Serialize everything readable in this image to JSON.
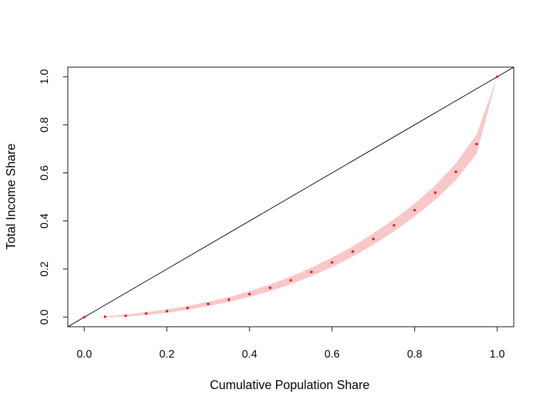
{
  "chart_data": {
    "type": "line",
    "title": "",
    "xlabel": "Cumulative Population Share",
    "ylabel": "Total Income Share",
    "xlim": [
      -0.04,
      1.04
    ],
    "ylim": [
      -0.04,
      1.04
    ],
    "x_ticks": [
      "0.0",
      "0.2",
      "0.4",
      "0.6",
      "0.8",
      "1.0"
    ],
    "y_ticks": [
      "0.0",
      "0.2",
      "0.4",
      "0.6",
      "0.8",
      "1.0"
    ],
    "grid": false,
    "legend": "none",
    "colors": {
      "points": "#ff0000",
      "band": "#f8c8c8",
      "equality_line": "#000000"
    },
    "equality_line": {
      "x": [
        0,
        1
      ],
      "y": [
        0,
        1
      ]
    },
    "series": [
      {
        "x": [
          0,
          0.05,
          0.1,
          0.15,
          0.2,
          0.25,
          0.3,
          0.35,
          0.4,
          0.45,
          0.5,
          0.55,
          0.6,
          0.65,
          0.7,
          0.75,
          0.8,
          0.85,
          0.9,
          0.95,
          1.0
        ],
        "y": [
          0,
          0.002,
          0.006,
          0.015,
          0.025,
          0.038,
          0.055,
          0.073,
          0.096,
          0.122,
          0.153,
          0.188,
          0.228,
          0.273,
          0.325,
          0.382,
          0.445,
          0.518,
          0.605,
          0.72,
          1.0
        ]
      }
    ],
    "band": {
      "x": [
        0.05,
        0.1,
        0.15,
        0.2,
        0.25,
        0.3,
        0.35,
        0.4,
        0.45,
        0.5,
        0.55,
        0.6,
        0.65,
        0.7,
        0.75,
        0.8,
        0.85,
        0.9,
        0.95,
        1.0
      ],
      "lower": [
        0.0,
        0.002,
        0.009,
        0.018,
        0.03,
        0.046,
        0.063,
        0.084,
        0.108,
        0.137,
        0.17,
        0.208,
        0.252,
        0.301,
        0.357,
        0.418,
        0.488,
        0.57,
        0.68,
        1.0
      ],
      "upper": [
        0.004,
        0.01,
        0.021,
        0.032,
        0.046,
        0.064,
        0.083,
        0.108,
        0.136,
        0.169,
        0.206,
        0.248,
        0.294,
        0.349,
        0.407,
        0.472,
        0.548,
        0.64,
        0.76,
        1.0
      ]
    }
  }
}
